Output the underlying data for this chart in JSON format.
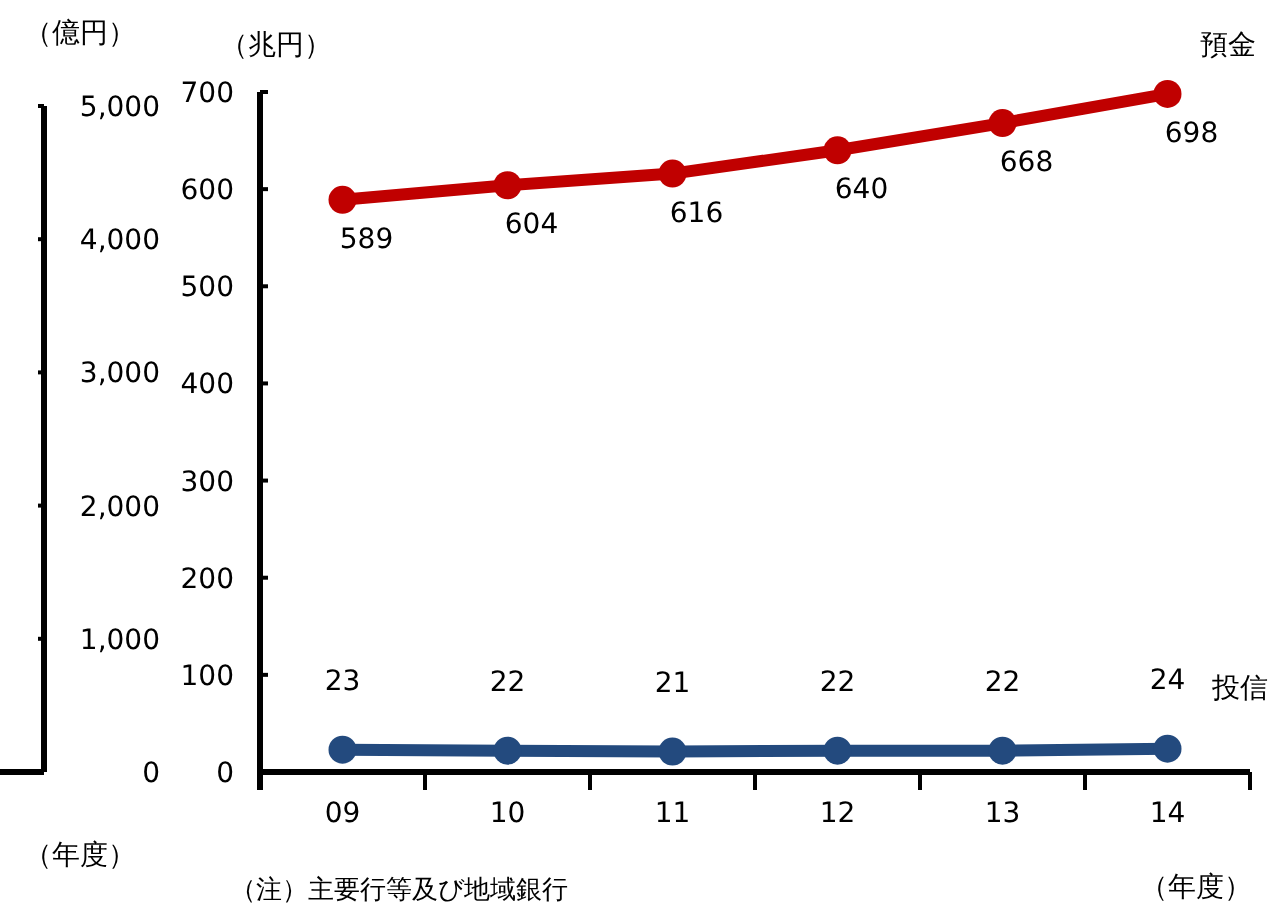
{
  "chart_data": {
    "type": "line",
    "categories": [
      "09",
      "10",
      "11",
      "12",
      "13",
      "14"
    ],
    "series": [
      {
        "name": "預金",
        "color": "#c00000",
        "values": [
          589,
          604,
          616,
          640,
          668,
          698
        ]
      },
      {
        "name": "投信",
        "color": "#234a7e",
        "values": [
          23,
          22,
          21,
          22,
          22,
          24
        ]
      }
    ],
    "ylabel": "（兆円）",
    "y2label": "（億円）",
    "xlabel": "（年度）",
    "ylim": [
      0,
      700
    ],
    "yticks": [
      0,
      100,
      200,
      300,
      400,
      500,
      600,
      700
    ],
    "y2lim": [
      0,
      5000
    ],
    "y2ticks": [
      0,
      {
        "value": 1000,
        "label": "1,000"
      },
      {
        "value": 2000,
        "label": "2,000"
      },
      {
        "value": 3000,
        "label": "3,000"
      },
      {
        "value": 4000,
        "label": "4,000"
      },
      {
        "value": 5000,
        "label": "5,000"
      }
    ],
    "marker": "circle",
    "data_labels": true,
    "annotations": [
      "（年度）",
      "（注）主要行等及び地域銀行"
    ]
  }
}
